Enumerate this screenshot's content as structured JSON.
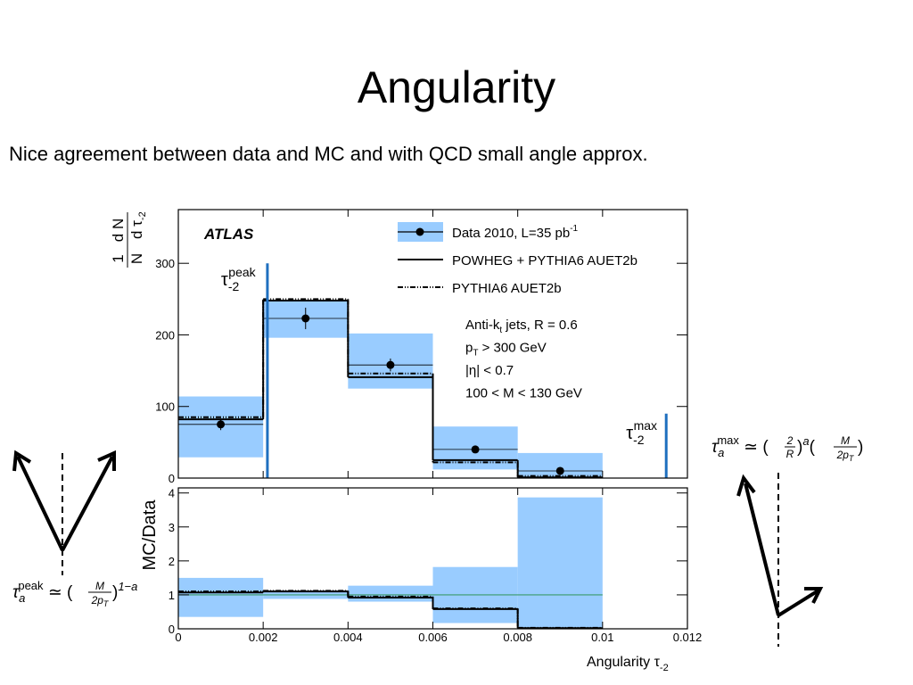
{
  "slide": {
    "title": "Angularity",
    "subtitle": "Nice agreement between data and MC and with QCD small angle approx."
  },
  "formulas": {
    "right": {
      "tau": "τ",
      "sub": "a",
      "sup": "max",
      "rest": " ≃ (",
      "num1": "2",
      "den1": "R",
      "mid": ")",
      "exp1": "a",
      "open2": "(",
      "num2": "M",
      "den2": "2p",
      "den2sub": "T",
      "close2": ")"
    },
    "left": {
      "tau": "τ",
      "sub": "a",
      "sup": "peak",
      "rest": " ≃ (",
      "num": "M",
      "den": "2p",
      "densub": "T",
      "close": ")",
      "exp": "1−a"
    }
  },
  "chart_data": {
    "type": "histogram",
    "xlabel": "Angularity τ",
    "xlabel_sub": "-2",
    "xlim": [
      0,
      0.012
    ],
    "xticks": [
      0,
      0.002,
      0.004,
      0.006,
      0.008,
      0.01,
      0.012
    ],
    "bins": [
      0,
      0.002,
      0.004,
      0.006,
      0.008,
      0.01
    ],
    "panels": [
      {
        "ylabel": {
          "num_a": "1",
          "num_b": "d N",
          "den_a": "N",
          "den_b": "d τ",
          "den_sub": "-2"
        },
        "ylim": [
          0,
          375
        ],
        "yticks": [
          0,
          100,
          200,
          300
        ],
        "experiment": "ATLAS",
        "data": {
          "name": "Data 2010, L=35 pb",
          "name_sup": "-1",
          "color": "#000000",
          "band_color": "#99ccff",
          "values": [
            75,
            223,
            158,
            40,
            10
          ],
          "errors": [
            8,
            15,
            9,
            5,
            3
          ],
          "band_low": [
            29,
            196,
            125,
            12,
            0
          ],
          "band_high": [
            114,
            249,
            202,
            72,
            35
          ]
        },
        "series": [
          {
            "name": "POWHEG + PYTHIA6 AUET2b",
            "style": "solid",
            "color": "#000000",
            "values": [
              82,
              248,
              141,
              25,
              1
            ]
          },
          {
            "name": "PYTHIA6 AUET2b",
            "style": "dashdot",
            "color": "#000000",
            "values": [
              85,
              250,
              146,
              22,
              3
            ]
          }
        ],
        "notes": [
          {
            "a": "Anti-k",
            "sub": "t",
            "b": " jets, R = 0.6"
          },
          {
            "a": "p",
            "sub": "T",
            "b": " > 300 GeV"
          },
          {
            "a": "|η| < 0.7"
          },
          {
            "a": "100 < M < 130 GeV"
          }
        ],
        "markers": [
          {
            "x": 0.0021,
            "height": 300,
            "color": "#1f6fbf",
            "label": "τ",
            "sub": "-2",
            "sup": "peak"
          },
          {
            "x": 0.0115,
            "height": 90,
            "color": "#1f6fbf",
            "label": "τ",
            "sub": "-2",
            "sup": "max"
          }
        ]
      },
      {
        "ylabel": "MC/Data",
        "ylim": [
          0,
          4.15
        ],
        "yticks": [
          0,
          1,
          2,
          3,
          4
        ],
        "reference": 1,
        "reference_color": "#3a9a6a",
        "band_color": "#99ccff",
        "band_low": [
          0.35,
          0.88,
          0.8,
          0.17,
          0
        ],
        "band_high": [
          1.5,
          1.13,
          1.27,
          1.82,
          3.87
        ],
        "series": [
          {
            "style": "solid",
            "color": "#000000",
            "values": [
              1.07,
              1.1,
              0.92,
              0.58,
              0.02
            ]
          },
          {
            "style": "dashdot",
            "color": "#000000",
            "values": [
              1.1,
              1.12,
              0.95,
              0.6,
              0.03
            ]
          }
        ]
      }
    ]
  }
}
